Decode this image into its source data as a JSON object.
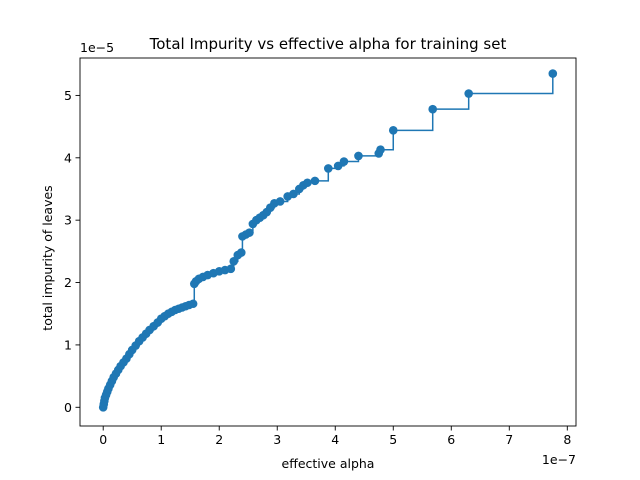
{
  "chart_data": {
    "type": "scatter",
    "title": "Total Impurity vs effective alpha for training set",
    "xlabel": "effective alpha",
    "ylabel": "total impurity of leaves",
    "x_multiplier_label": "1e−7",
    "y_multiplier_label": "1e−5",
    "x_scale": 1e-07,
    "y_scale": 1e-05,
    "xlim": [
      -0.4,
      8.15
    ],
    "ylim": [
      -0.3,
      5.6
    ],
    "xticks": [
      0,
      1,
      2,
      3,
      4,
      5,
      6,
      7,
      8
    ],
    "yticks": [
      0,
      1,
      2,
      3,
      4,
      5
    ],
    "drawstyle": "steps-post",
    "marker": "circle",
    "color": "#1f77b4",
    "grid": false,
    "legend": "none",
    "series": [
      {
        "x": [
          0.0,
          0.01,
          0.02,
          0.03,
          0.05,
          0.07,
          0.09,
          0.12,
          0.15,
          0.18,
          0.22,
          0.26,
          0.3,
          0.35,
          0.4,
          0.45,
          0.5,
          0.56,
          0.62,
          0.68,
          0.74,
          0.8,
          0.87,
          0.94,
          1.0,
          1.06,
          1.12,
          1.18,
          1.24,
          1.3,
          1.36,
          1.42,
          1.48,
          1.55,
          1.57,
          1.6,
          1.65,
          1.72,
          1.8,
          1.9,
          2.0,
          2.1,
          2.2,
          2.25,
          2.32,
          2.38,
          2.4,
          2.46,
          2.52,
          2.58,
          2.64,
          2.7,
          2.76,
          2.82,
          2.88,
          2.95,
          3.05,
          3.18,
          3.28,
          3.38,
          3.45,
          3.52,
          3.65,
          3.88,
          4.05,
          4.15,
          4.4,
          4.75,
          4.78,
          5.0,
          5.68,
          6.3,
          7.75
        ],
        "y": [
          0.0,
          0.05,
          0.1,
          0.15,
          0.2,
          0.25,
          0.3,
          0.36,
          0.42,
          0.48,
          0.54,
          0.6,
          0.66,
          0.72,
          0.78,
          0.85,
          0.92,
          0.99,
          1.06,
          1.12,
          1.18,
          1.24,
          1.3,
          1.36,
          1.42,
          1.46,
          1.5,
          1.53,
          1.56,
          1.58,
          1.6,
          1.62,
          1.64,
          1.66,
          1.98,
          2.02,
          2.06,
          2.09,
          2.12,
          2.15,
          2.18,
          2.2,
          2.22,
          2.34,
          2.44,
          2.48,
          2.74,
          2.77,
          2.8,
          2.94,
          3.0,
          3.04,
          3.08,
          3.13,
          3.2,
          3.27,
          3.3,
          3.38,
          3.42,
          3.5,
          3.56,
          3.6,
          3.63,
          3.83,
          3.87,
          3.94,
          4.03,
          4.07,
          4.13,
          4.44,
          4.78,
          5.03,
          5.35
        ]
      }
    ]
  }
}
